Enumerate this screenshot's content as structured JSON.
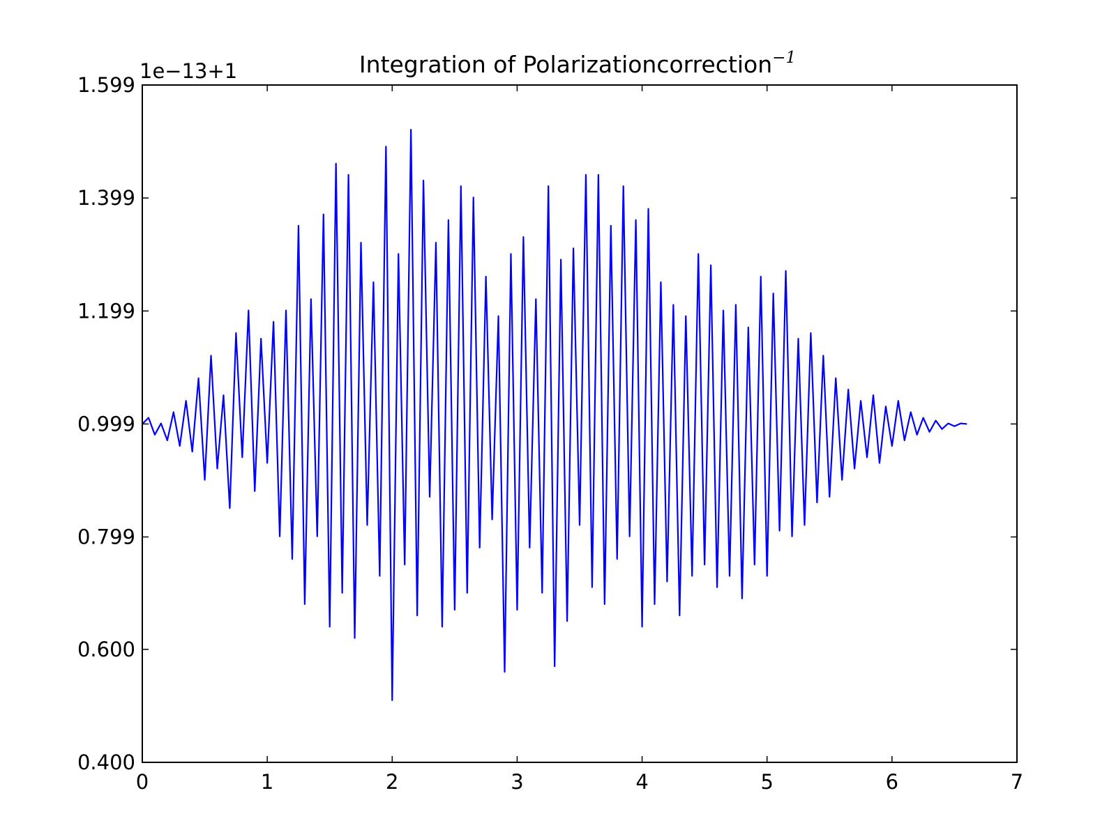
{
  "chart_data": {
    "type": "line",
    "title": "Integration of Polarizationcorrection",
    "title_superscript": "−1",
    "y_offset_label": "1e−13+1",
    "color": "#0000ff",
    "xlim": [
      0,
      7
    ],
    "xticks": [
      0,
      1,
      2,
      3,
      4,
      5,
      6,
      7
    ],
    "ylim": [
      0.4,
      1.599
    ],
    "yticks": [
      {
        "value": 0.4,
        "label": "0.400"
      },
      {
        "value": 0.6,
        "label": "0.600"
      },
      0.799,
      0.999,
      1.199,
      1.399,
      1.599
    ],
    "x": [
      0,
      0.05,
      0.1,
      0.15,
      0.2,
      0.25,
      0.3,
      0.35,
      0.4,
      0.45,
      0.5,
      0.55,
      0.6,
      0.65,
      0.7,
      0.75,
      0.8,
      0.85,
      0.9,
      0.95,
      1,
      1.05,
      1.1,
      1.15,
      1.2,
      1.25,
      1.3,
      1.35,
      1.4,
      1.45,
      1.5,
      1.55,
      1.6,
      1.65,
      1.7,
      1.75,
      1.8,
      1.85,
      1.9,
      1.95,
      2,
      2.05,
      2.1,
      2.15,
      2.2,
      2.25,
      2.3,
      2.35,
      2.4,
      2.45,
      2.5,
      2.55,
      2.6,
      2.65,
      2.7,
      2.75,
      2.8,
      2.85,
      2.9,
      2.95,
      3,
      3.05,
      3.1,
      3.15,
      3.2,
      3.25,
      3.3,
      3.35,
      3.4,
      3.45,
      3.5,
      3.55,
      3.6,
      3.65,
      3.7,
      3.75,
      3.8,
      3.85,
      3.9,
      3.95,
      4,
      4.05,
      4.1,
      4.15,
      4.2,
      4.25,
      4.3,
      4.35,
      4.4,
      4.45,
      4.5,
      4.55,
      4.6,
      4.65,
      4.7,
      4.75,
      4.8,
      4.85,
      4.9,
      4.95,
      5,
      5.05,
      5.1,
      5.15,
      5.2,
      5.25,
      5.3,
      5.35,
      5.4,
      5.45,
      5.5,
      5.55,
      5.6,
      5.65,
      5.7,
      5.75,
      5.8,
      5.85,
      5.9,
      5.95,
      6,
      6.05,
      6.1,
      6.15,
      6.2,
      6.25,
      6.3,
      6.35,
      6.4,
      6.45,
      6.5,
      6.55,
      6.6
    ],
    "values": [
      0.999,
      1.01,
      0.98,
      1.0,
      0.97,
      1.02,
      0.96,
      1.04,
      0.95,
      1.08,
      0.9,
      1.12,
      0.92,
      1.05,
      0.85,
      1.16,
      0.94,
      1.2,
      0.88,
      1.15,
      0.93,
      1.18,
      0.8,
      1.2,
      0.76,
      1.35,
      0.68,
      1.22,
      0.8,
      1.37,
      0.64,
      1.46,
      0.7,
      1.44,
      0.62,
      1.32,
      0.82,
      1.25,
      0.73,
      1.49,
      0.51,
      1.3,
      0.75,
      1.52,
      0.66,
      1.43,
      0.87,
      1.32,
      0.64,
      1.36,
      0.67,
      1.42,
      0.7,
      1.4,
      0.78,
      1.26,
      0.83,
      1.19,
      0.56,
      1.3,
      0.67,
      1.33,
      0.78,
      1.22,
      0.7,
      1.42,
      0.57,
      1.29,
      0.65,
      1.31,
      0.82,
      1.44,
      0.71,
      1.44,
      0.68,
      1.35,
      0.76,
      1.42,
      0.8,
      1.36,
      0.64,
      1.38,
      0.68,
      1.25,
      0.72,
      1.21,
      0.66,
      1.19,
      0.73,
      1.3,
      0.75,
      1.28,
      0.71,
      1.2,
      0.73,
      1.21,
      0.69,
      1.17,
      0.75,
      1.26,
      0.73,
      1.23,
      0.81,
      1.27,
      0.8,
      1.15,
      0.82,
      1.16,
      0.86,
      1.12,
      0.87,
      1.08,
      0.9,
      1.06,
      0.92,
      1.04,
      0.94,
      1.05,
      0.93,
      1.03,
      0.96,
      1.04,
      0.97,
      1.02,
      0.98,
      1.01,
      0.985,
      1.005,
      0.99,
      1.0,
      0.995,
      1.0,
      0.999
    ]
  }
}
